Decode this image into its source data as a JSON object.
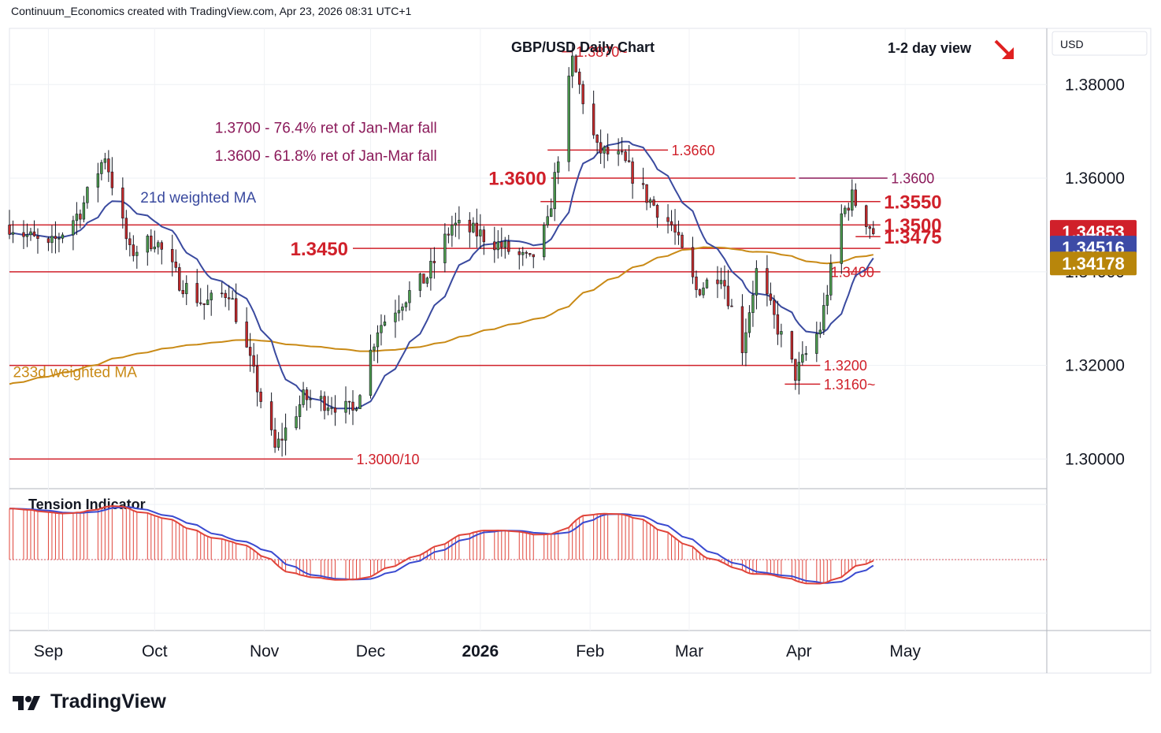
{
  "header": {
    "credit": "Continuum_Economics created with TradingView.com, Apr 23, 2026 08:31 UTC+1"
  },
  "brand": {
    "name": "TradingView",
    "logo_icon": "tradingview-logo-icon"
  },
  "chart_data": {
    "type": "candlestick",
    "title": "GBP/USD Daily Chart",
    "view_label": "1-2 day view",
    "view_arrow_icon": "arrow-down-right-icon",
    "currency": "USD",
    "ylim": [
      1.294,
      1.392
    ],
    "y_ticks": [
      1.3,
      1.32,
      1.34,
      1.36,
      1.38
    ],
    "y_tick_labels": [
      "1.30000",
      "1.32000",
      "1.34000",
      "1.36000",
      "1.38000"
    ],
    "x_axis_labels": [
      {
        "label": "Sep",
        "date": "2025-09-01",
        "bold": false
      },
      {
        "label": "Oct",
        "date": "2025-10-01",
        "bold": false
      },
      {
        "label": "Nov",
        "date": "2025-11-01",
        "bold": false
      },
      {
        "label": "Dec",
        "date": "2025-12-01",
        "bold": false
      },
      {
        "label": "2026",
        "date": "2026-01-01",
        "bold": true
      },
      {
        "label": "Feb",
        "date": "2026-02-01",
        "bold": false
      },
      {
        "label": "Mar",
        "date": "2026-03-01",
        "bold": false
      },
      {
        "label": "Apr",
        "date": "2026-04-01",
        "bold": false
      },
      {
        "label": "May",
        "date": "2026-05-01",
        "bold": false
      }
    ],
    "x_range": [
      "2025-08-21",
      "2026-06-10"
    ],
    "price_badges": [
      {
        "label": "1.34853",
        "value": 1.34853,
        "color": "#d0202a"
      },
      {
        "label": "1.34516",
        "value": 1.34516,
        "color": "#3d4ba6"
      },
      {
        "label": "1.34178",
        "value": 1.34178,
        "color": "#b8860b"
      }
    ],
    "moving_averages": [
      {
        "name": "21d weighted MA",
        "color": "#3a4a9f",
        "label_date": "2025-09-27",
        "label_value": 1.3548
      },
      {
        "name": "233d weighted MA",
        "color": "#c98a16",
        "label_date": "2025-08-22",
        "label_value": 1.3175
      }
    ],
    "levels": [
      {
        "value": 1.387,
        "label": "1.3870~",
        "start": "2026-01-24",
        "end": "2026-01-27",
        "label_date": "2026-01-28",
        "size": "small",
        "color": "#d0202a",
        "line_color": "#d0202a"
      },
      {
        "value": 1.366,
        "label": "1.3660",
        "start": "2026-01-20",
        "end": "2026-02-23",
        "label_date": "2026-02-24",
        "size": "small",
        "color": "#d0202a",
        "line_color": "#d0202a"
      },
      {
        "value": 1.36,
        "label": "1.3600",
        "start": "2026-01-21",
        "end": "2026-03-31",
        "label_date": "2026-01-01",
        "size": "large",
        "color": "#d0202a",
        "line_color": "#d0202a",
        "label_side": "left"
      },
      {
        "value": 1.36,
        "label": "1.3600",
        "start": "2026-04-01",
        "end": "2026-04-26",
        "label_date": "2026-04-27",
        "size": "small",
        "color": "#8b1a5a",
        "line_color": "#8b1a5a"
      },
      {
        "value": 1.355,
        "label": "1.3550",
        "start": "2026-01-18",
        "end": "2026-04-24",
        "label_date": "2026-04-25",
        "size": "large",
        "color": "#d0202a",
        "line_color": "#d0202a"
      },
      {
        "value": 1.35,
        "label": "1.3500",
        "start": "2025-08-21",
        "end": "2026-04-24",
        "label_date": "2026-04-25",
        "size": "large",
        "color": "#d0202a",
        "line_color": "#d0202a"
      },
      {
        "value": 1.3475,
        "label": "1.3475",
        "start": "2026-04-17",
        "end": "2026-04-24",
        "label_date": "2026-04-25",
        "size": "large",
        "color": "#d0202a",
        "line_color": "#d0202a"
      },
      {
        "value": 1.345,
        "label": "1.3450",
        "start": "2025-11-26",
        "end": "2026-04-24",
        "label_date": "2025-11-01",
        "size": "large",
        "color": "#d0202a",
        "line_color": "#d0202a",
        "label_side": "left"
      },
      {
        "value": 1.34,
        "label": "1.3400",
        "start": "2025-08-21",
        "end": "2026-04-24",
        "label_date": "2026-04-10",
        "size": "small",
        "color": "#d0202a",
        "line_color": "#d0202a"
      },
      {
        "value": 1.32,
        "label": "1.3200",
        "start": "2025-08-21",
        "end": "2026-04-07",
        "label_date": "2026-04-08",
        "size": "small",
        "color": "#d0202a",
        "line_color": "#d0202a"
      },
      {
        "value": 1.316,
        "label": "1.3160~",
        "start": "2026-03-28",
        "end": "2026-04-07",
        "label_date": "2026-04-08",
        "size": "small",
        "color": "#d0202a",
        "line_color": "#d0202a"
      },
      {
        "value": 1.3,
        "label": "1.3000/10",
        "start": "2025-08-21",
        "end": "2025-11-26",
        "label_date": "2025-11-27",
        "size": "small",
        "color": "#d0202a",
        "line_color": "#d0202a"
      }
    ],
    "annotations": [
      {
        "text": "1.3600 - 61.8% ret of Jan-Mar fall",
        "date": "2025-10-18",
        "value": 1.3637,
        "color": "#8b1a5a"
      },
      {
        "text": "1.3700 - 76.4% ret of Jan-Mar fall",
        "date": "2025-10-18",
        "value": 1.3697,
        "color": "#8b1a5a"
      }
    ],
    "indicator": {
      "name": "Tension Indicator",
      "line_color": "#e0443a",
      "signal_color": "#3a4ad0",
      "hist_color": "#e0443a"
    },
    "grid": true,
    "legend": "none"
  }
}
